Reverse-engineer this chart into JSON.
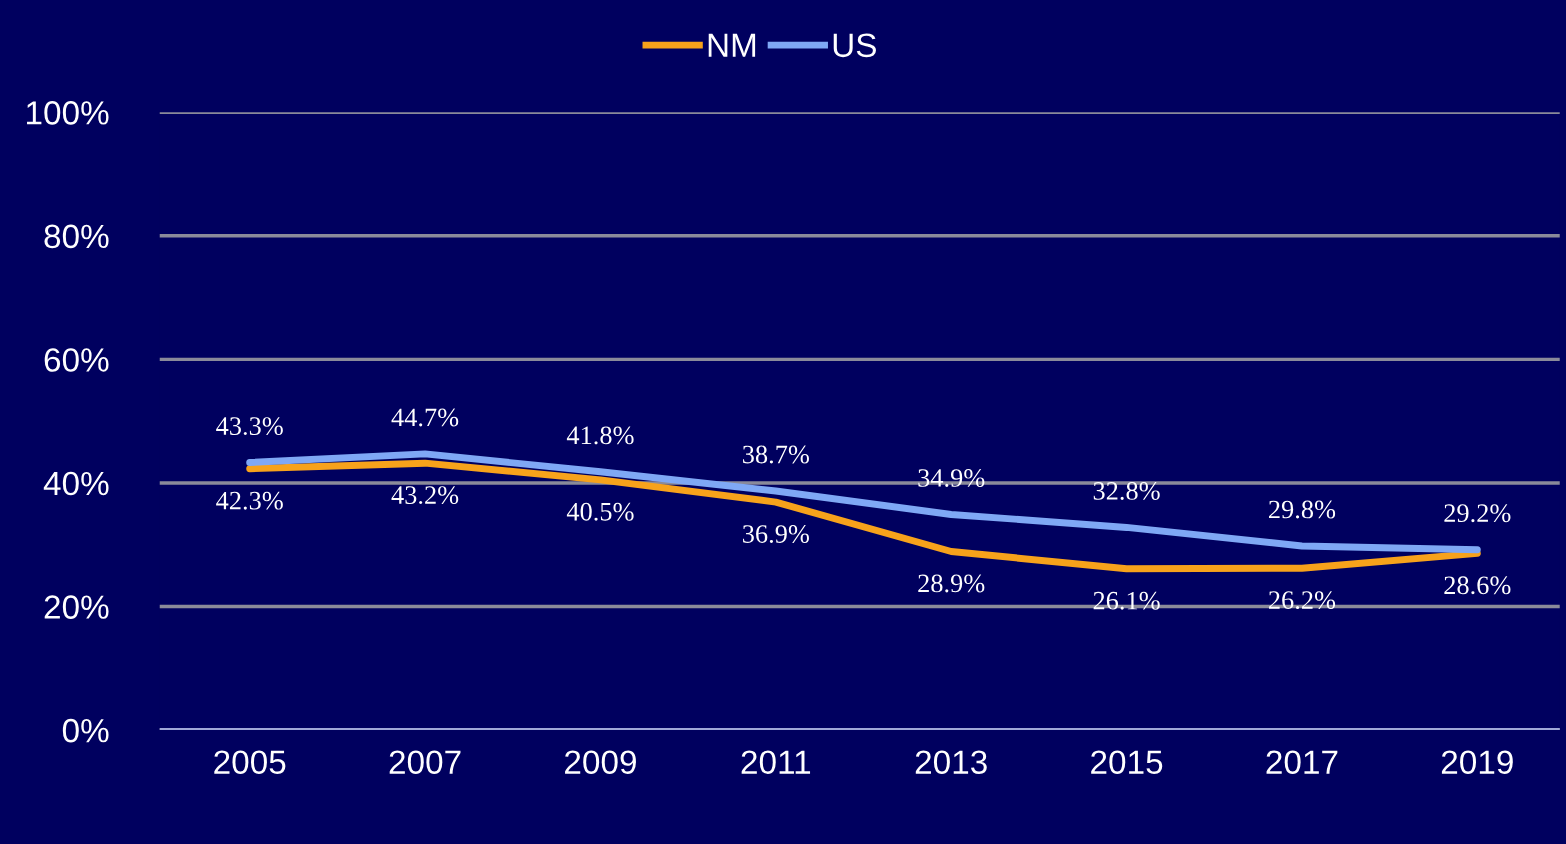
{
  "chart_data": {
    "type": "line",
    "categories": [
      "2005",
      "2007",
      "2009",
      "2011",
      "2013",
      "2015",
      "2017",
      "2019"
    ],
    "series": [
      {
        "name": "NM",
        "color": "#f7a21b",
        "values": [
          42.3,
          43.2,
          40.5,
          36.9,
          28.9,
          26.1,
          26.2,
          28.6
        ],
        "value_labels": [
          "42.3%",
          "43.2%",
          "40.5%",
          "36.9%",
          "28.9%",
          "26.1%",
          "26.2%",
          "28.6%"
        ]
      },
      {
        "name": "US",
        "color": "#7fa8f5",
        "values": [
          43.3,
          44.7,
          41.8,
          38.7,
          34.9,
          32.8,
          29.8,
          29.2
        ],
        "value_labels": [
          "43.3%",
          "44.7%",
          "41.8%",
          "38.7%",
          "34.9%",
          "32.8%",
          "29.8%",
          "29.2%"
        ]
      }
    ],
    "ylim": [
      0,
      100
    ],
    "yticks": [
      {
        "value": 0,
        "label": "0%"
      },
      {
        "value": 20,
        "label": "20%"
      },
      {
        "value": 40,
        "label": "40%"
      },
      {
        "value": 60,
        "label": "60%"
      },
      {
        "value": 80,
        "label": "80%"
      },
      {
        "value": 100,
        "label": "100%"
      }
    ],
    "grid": "y",
    "legend": "top",
    "marker": "none",
    "line_style": "solid"
  }
}
